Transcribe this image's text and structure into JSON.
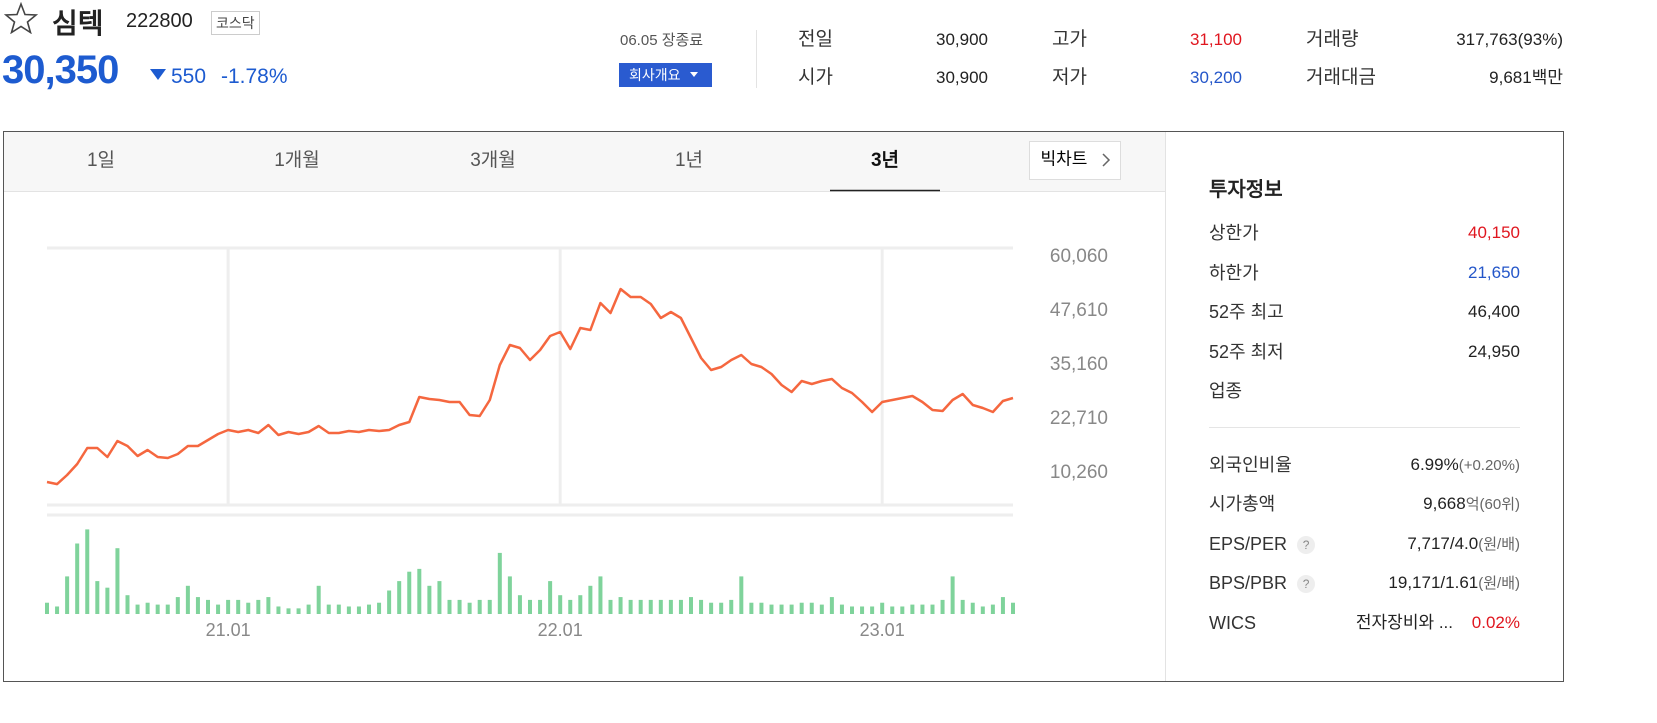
{
  "header": {
    "name": "심텍",
    "code": "222800",
    "market": "코스닥",
    "price": "30,350",
    "change": "550",
    "change_rate": "-1.78%",
    "status": "06.05 장종료",
    "company_button": "회사개요",
    "color": "#1d5bd0"
  },
  "quote": [
    [
      {
        "label": "전일",
        "value": "30,900"
      },
      {
        "label": "시가",
        "value": "30,900"
      }
    ],
    [
      {
        "label": "고가",
        "value": "31,100",
        "color": "#e0161f"
      },
      {
        "label": "저가",
        "value": "30,200",
        "color": "#2456c9"
      }
    ],
    [
      {
        "label": "거래량",
        "value": "317,763(93%)"
      },
      {
        "label": "거래대금",
        "value": "9,681",
        "unit": "백만"
      }
    ]
  ],
  "tabs": [
    "1일",
    "1개월",
    "3개월",
    "1년",
    "3년"
  ],
  "active_tab": 4,
  "big_chart": "빅차트",
  "investment": {
    "title": "투자정보",
    "help_icon": "?",
    "price_rows": [
      {
        "label": "상한가",
        "value": "40,150",
        "color": "#e0161f"
      },
      {
        "label": "하한가",
        "value": "21,650",
        "color": "#2456c9"
      },
      {
        "label": "52주 최고",
        "value": "46,400"
      },
      {
        "label": "52주 최저",
        "value": "24,950"
      },
      {
        "label": "업종",
        "value": ""
      }
    ],
    "valuation_rows": [
      {
        "label": "외국인비율",
        "value": "6.99%",
        "unit": "(+0.20%)"
      },
      {
        "label": "시가총액",
        "value": "9,668",
        "unit": "억(60위)"
      },
      {
        "label": "EPS/PER",
        "value": "7,717/4.0",
        "unit": "(원/배)",
        "help": true
      },
      {
        "label": "BPS/PBR",
        "value": "19,171/1.61",
        "unit": "(원/배)",
        "help": true
      },
      {
        "label": "WICS",
        "value": "전자장비와 ...",
        "change": "0.02%",
        "change_color": "#e0161f"
      }
    ]
  },
  "chart_data": {
    "type": "line",
    "color": "#f5673f",
    "categories": [
      null,
      null,
      null,
      null,
      null,
      null,
      null,
      null,
      null,
      null,
      null,
      null,
      null,
      null,
      null,
      null,
      null,
      null,
      "21.01",
      null,
      null,
      null,
      null,
      null,
      null,
      null,
      null,
      null,
      null,
      null,
      null,
      null,
      null,
      null,
      null,
      null,
      null,
      null,
      null,
      null,
      null,
      null,
      null,
      null,
      null,
      null,
      null,
      null,
      null,
      null,
      null,
      "22.01",
      null,
      null,
      null,
      null,
      null,
      null,
      null,
      null,
      null,
      null,
      null,
      null,
      null,
      null,
      null,
      null,
      null,
      null,
      null,
      null,
      null,
      null,
      null,
      null,
      null,
      null,
      null,
      null,
      null,
      null,
      null,
      "23.01",
      null,
      null,
      null,
      null,
      null,
      null,
      null,
      null,
      null,
      null,
      null,
      null,
      null
    ],
    "values": [
      8180,
      7710,
      9790,
      12330,
      16020,
      16020,
      13940,
      17630,
      16480,
      14170,
      15550,
      13940,
      13710,
      14630,
      16480,
      16480,
      17860,
      19240,
      20170,
      19710,
      20170,
      19470,
      21320,
      19010,
      19710,
      19240,
      19710,
      21090,
      19470,
      19470,
      19940,
      19710,
      20170,
      19940,
      20170,
      21320,
      22010,
      27780,
      27320,
      27080,
      26620,
      26620,
      23630,
      23400,
      27080,
      35160,
      39770,
      39080,
      36310,
      38610,
      41840,
      42770,
      38850,
      43690,
      43230,
      49450,
      47150,
      52680,
      50840,
      50840,
      49220,
      45990,
      47380,
      45990,
      41380,
      36770,
      34000,
      34690,
      36310,
      37460,
      35390,
      34690,
      33080,
      30540,
      28930,
      31470,
      30770,
      31470,
      31930,
      29850,
      28700,
      26620,
      24320,
      26620,
      27080,
      27550,
      28010,
      26620,
      24780,
      24550,
      27080,
      28470,
      25930,
      25240,
      24320,
      26850,
      27550
    ],
    "ylim": [
      2880,
      62366
    ],
    "yticks": [
      {
        "value": 10260,
        "label": "10,260"
      },
      {
        "value": 22710,
        "label": "22,710"
      },
      {
        "value": 35160,
        "label": "35,160"
      },
      {
        "value": 47610,
        "label": "47,610"
      },
      {
        "value": 60060,
        "label": "60,060"
      }
    ],
    "x_grid": true,
    "volume": {
      "color": "#7fd39b",
      "ylim": [
        0,
        100
      ],
      "values": [
        12,
        8,
        40,
        75,
        90,
        35,
        28,
        70,
        20,
        10,
        12,
        10,
        10,
        18,
        30,
        18,
        15,
        10,
        15,
        15,
        12,
        15,
        18,
        8,
        6,
        6,
        10,
        30,
        10,
        10,
        8,
        8,
        10,
        12,
        25,
        35,
        45,
        48,
        30,
        35,
        15,
        15,
        12,
        15,
        15,
        65,
        40,
        20,
        15,
        15,
        35,
        20,
        15,
        20,
        30,
        40,
        15,
        18,
        15,
        15,
        15,
        15,
        15,
        15,
        18,
        15,
        12,
        12,
        15,
        40,
        12,
        12,
        10,
        10,
        10,
        12,
        12,
        10,
        18,
        10,
        8,
        8,
        8,
        12,
        8,
        8,
        10,
        10,
        10,
        15,
        40,
        15,
        12,
        8,
        10,
        18,
        12
      ]
    }
  }
}
